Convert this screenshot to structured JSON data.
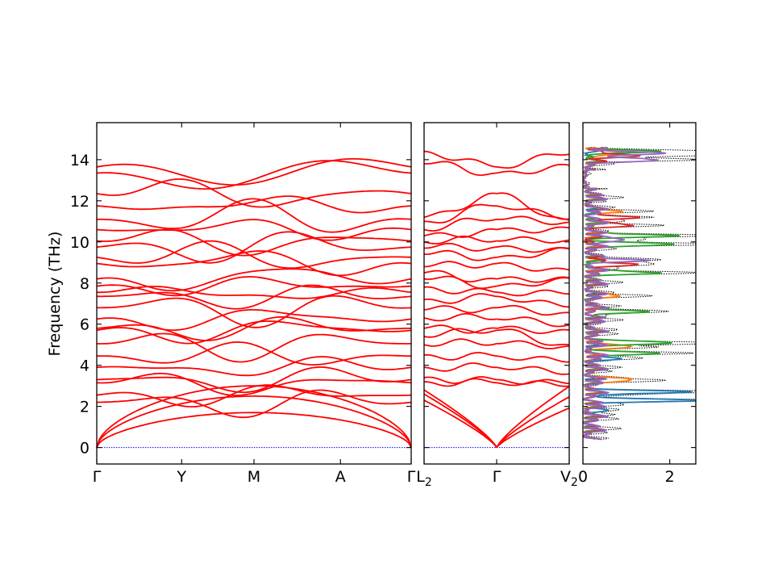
{
  "chart_data": [
    {
      "type": "line",
      "panel": "band-structure-left",
      "ylabel": "Frequency (THz)",
      "ylim": [
        -0.8,
        15.8
      ],
      "y_ticks": [
        0,
        2,
        4,
        6,
        8,
        10,
        12,
        14
      ],
      "x_ticks": [
        {
          "label": "Γ",
          "x": 0
        },
        {
          "label": "Y",
          "x": 0.27
        },
        {
          "label": "M",
          "x": 0.5
        },
        {
          "label": "A",
          "x": 0.775
        },
        {
          "label": "Γ",
          "x": 1
        }
      ],
      "series_color": "#ff0000",
      "zero_line_color": "#0000ff",
      "band_endpoints_gamma": [
        0,
        0,
        0,
        2.2,
        2.55,
        3.15,
        3.3,
        3.9,
        4.45,
        5.05,
        5.7,
        5.8,
        6.25,
        6.8,
        7.35,
        7.55,
        7.85,
        8.2,
        8.95,
        9.25,
        9.75,
        10.05,
        10.6,
        11.1,
        11.75,
        12.35,
        13.35,
        13.65
      ]
    },
    {
      "type": "line",
      "panel": "band-structure-middle",
      "ylim": [
        -0.8,
        15.8
      ],
      "x_ticks": [
        {
          "label": "L",
          "sub": "2",
          "x": 0
        },
        {
          "label": "Γ",
          "sub": "",
          "x": 0.5
        },
        {
          "label": "V",
          "sub": "2",
          "x": 1
        }
      ],
      "series_color": "#ff0000",
      "zero_line_color": "#0000ff",
      "band_endpoints_L2": [
        2.3,
        2.6,
        2.8,
        3.2,
        3.4,
        3.9,
        4.5,
        5.0,
        5.4,
        5.8,
        6.3,
        6.7,
        7.2,
        7.8,
        8.2,
        8.5,
        8.8,
        9.4,
        9.7,
        10.0,
        10.3,
        10.6,
        11.0,
        11.2,
        13.8,
        14.4
      ]
    },
    {
      "type": "line",
      "panel": "dos",
      "ylim": [
        -0.8,
        15.8
      ],
      "xlim": [
        0,
        2.6
      ],
      "x_ticks": [
        0,
        2
      ],
      "series": [
        {
          "color": "#1f77b4",
          "peaks": [
            [
              2.3,
              2.5
            ],
            [
              2.7,
              2.2
            ],
            [
              4.3,
              0.6
            ],
            [
              1.8,
              0.5
            ]
          ]
        },
        {
          "color": "#ff7f0e",
          "peaks": [
            [
              3.3,
              1.0
            ],
            [
              4.9,
              1.0
            ],
            [
              7.4,
              0.6
            ],
            [
              11.5,
              0.6
            ],
            [
              14.3,
              0.9
            ]
          ]
        },
        {
          "color": "#2ca02c",
          "peaks": [
            [
              5.1,
              1.9
            ],
            [
              4.6,
              1.5
            ],
            [
              8.5,
              1.5
            ],
            [
              9.9,
              1.9
            ],
            [
              10.3,
              1.8
            ],
            [
              6.6,
              1.3
            ],
            [
              14.4,
              1.4
            ]
          ]
        },
        {
          "color": "#d62728",
          "peaks": [
            [
              8.9,
              1.2
            ],
            [
              10.8,
              1.0
            ],
            [
              11.2,
              1.1
            ],
            [
              14.2,
              1.2
            ]
          ]
        },
        {
          "color": "#9467bd",
          "peaks": [
            [
              9.1,
              1.0
            ],
            [
              10.1,
              0.9
            ],
            [
              14.0,
              1.5
            ],
            [
              14.3,
              1.7
            ]
          ]
        }
      ],
      "total_color": "#000000"
    }
  ]
}
